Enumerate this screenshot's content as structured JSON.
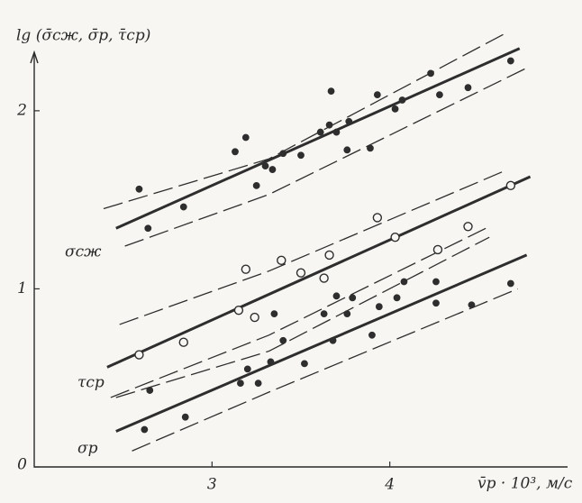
{
  "chart_data": {
    "type": "scatter",
    "y_label": "lg (σ̄сж, σ̄р, τ̄ср)",
    "x_label": "v̄р · 10³, м/с",
    "xlim": [
      2,
      5
    ],
    "ylim": [
      0,
      2.3
    ],
    "xticks": [
      3,
      4
    ],
    "yticks": [
      0,
      1,
      2
    ],
    "color": "#2e2e2e",
    "series": [
      {
        "name": "σсж",
        "marker": "filled",
        "x": [
          2.59,
          2.64,
          2.84,
          3.13,
          3.19,
          3.25,
          3.3,
          3.34,
          3.4,
          3.5,
          3.61,
          3.66,
          3.67,
          3.7,
          3.76,
          3.77,
          3.89,
          3.93,
          4.03,
          4.07,
          4.23,
          4.28,
          4.44,
          4.68
        ],
        "values": [
          1.56,
          1.34,
          1.46,
          1.77,
          1.85,
          1.58,
          1.69,
          1.67,
          1.76,
          1.75,
          1.88,
          1.92,
          2.11,
          1.88,
          1.78,
          1.94,
          1.79,
          2.09,
          2.01,
          2.06,
          2.21,
          2.09,
          2.13,
          2.28
        ],
        "fit": {
          "x": [
            2.46,
            4.73
          ],
          "values": [
            1.34,
            2.35
          ]
        },
        "band_upper": {
          "x": [
            2.39,
            3.32,
            4.66
          ],
          "values": [
            1.45,
            1.73,
            2.44
          ]
        },
        "band_lower": {
          "x": [
            2.51,
            3.32,
            4.79
          ],
          "values": [
            1.24,
            1.53,
            2.25
          ]
        }
      },
      {
        "name": "τср",
        "marker": "open",
        "x": [
          2.59,
          2.84,
          3.15,
          3.19,
          3.24,
          3.39,
          3.5,
          3.63,
          3.66,
          3.93,
          4.03,
          4.27,
          4.44,
          4.68
        ],
        "values": [
          0.63,
          0.7,
          0.88,
          1.11,
          0.84,
          1.16,
          1.09,
          1.06,
          1.19,
          1.4,
          1.29,
          1.22,
          1.35,
          1.58
        ],
        "fit": {
          "x": [
            2.41,
            4.79
          ],
          "values": [
            0.56,
            1.63
          ]
        },
        "band_upper": {
          "x": [
            2.48,
            3.32,
            4.64
          ],
          "values": [
            0.8,
            1.1,
            1.66
          ]
        },
        "band_lower": {
          "x": [
            2.43,
            3.32,
            4.54
          ],
          "values": [
            0.39,
            0.74,
            1.34
          ]
        }
      },
      {
        "name": "σр",
        "marker": "filled",
        "x": [
          2.62,
          2.65,
          2.85,
          3.16,
          3.2,
          3.26,
          3.33,
          3.35,
          3.4,
          3.52,
          3.63,
          3.68,
          3.7,
          3.76,
          3.79,
          3.9,
          3.94,
          4.04,
          4.08,
          4.26,
          4.26,
          4.46,
          4.68
        ],
        "values": [
          0.21,
          0.43,
          0.28,
          0.47,
          0.55,
          0.47,
          0.59,
          0.86,
          0.71,
          0.58,
          0.86,
          0.71,
          0.96,
          0.86,
          0.95,
          0.74,
          0.9,
          0.95,
          1.04,
          1.04,
          0.92,
          0.91,
          1.03
        ],
        "fit": {
          "x": [
            2.46,
            4.77
          ],
          "values": [
            0.2,
            1.19
          ]
        },
        "band_upper": {
          "x": [
            2.46,
            3.32,
            4.56
          ],
          "values": [
            0.39,
            0.65,
            1.29
          ]
        },
        "band_lower": {
          "x": [
            2.55,
            3.32,
            4.72
          ],
          "values": [
            0.09,
            0.42,
            1.0
          ]
        }
      }
    ]
  }
}
